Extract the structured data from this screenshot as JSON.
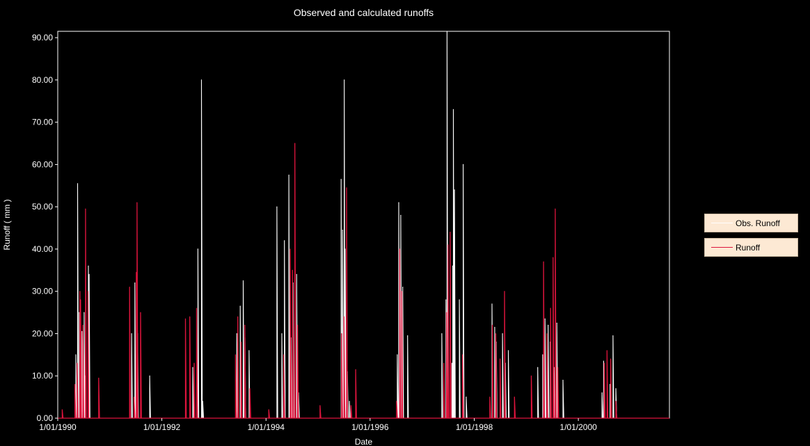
{
  "colors": {
    "background": "#000000",
    "axis": "#ffffff",
    "observed": "#ffffff",
    "calculated": "#dc143c",
    "legend_bg": "#fde9d4"
  },
  "chart_data": {
    "type": "line",
    "title": "Observed and calculated runoffs",
    "xlabel": "Date",
    "ylabel": "Runoff ( mm )",
    "ylim": [
      0,
      91.5
    ],
    "xlim": [
      "1/01/1990",
      "1/10/2001"
    ],
    "y_ticks": [
      "0.00",
      "10.00",
      "20.00",
      "30.00",
      "40.00",
      "50.00",
      "60.00",
      "70.00",
      "80.00",
      "90.00"
    ],
    "x_ticks": [
      "1/01/1990",
      "1/01/1992",
      "1/01/1994",
      "1/01/1996",
      "1/01/1998",
      "1/01/2000"
    ],
    "grid": false,
    "legend_position": "right",
    "series": [
      {
        "name": "Obs. Runoff",
        "color": "#ffffff",
        "x": [
          "1990-05-08",
          "1990-05-20",
          "1990-06-01",
          "1990-06-08",
          "1990-06-20",
          "1990-07-05",
          "1990-07-12",
          "1990-08-04",
          "1990-08-09",
          "1991-06-03",
          "1991-06-26",
          "1991-07-15",
          "1991-10-08",
          "1992-08-05",
          "1992-09-10",
          "1992-10-05",
          "1992-10-14",
          "1993-06-10",
          "1993-07-04",
          "1993-07-25",
          "1993-08-06",
          "1993-09-04",
          "1994-03-18",
          "1994-04-22",
          "1994-05-10",
          "1994-06-10",
          "1994-06-26",
          "1994-07-10",
          "1994-08-04",
          "1994-08-17",
          "1995-06-12",
          "1995-06-22",
          "1995-07-04",
          "1995-07-10",
          "1995-07-26",
          "1995-08-09",
          "1996-07-10",
          "1996-07-20",
          "1996-08-03",
          "1996-08-17",
          "1996-09-20",
          "1997-05-18",
          "1997-06-16",
          "1997-06-24",
          "1997-07-28",
          "1997-08-03",
          "1997-08-07",
          "1997-08-15",
          "1997-09-18",
          "1997-10-15",
          "1997-11-05",
          "1998-05-05",
          "1998-05-24",
          "1998-06-04",
          "1998-07-18",
          "1998-08-07",
          "1998-08-28",
          "1999-03-22",
          "1999-04-26",
          "1999-05-12",
          "1999-06-03",
          "1999-06-18",
          "1999-07-15",
          "1999-08-03",
          "1999-09-15",
          "2000-06-15",
          "2000-06-26",
          "2000-08-10",
          "2000-08-31",
          "2000-09-20"
        ],
        "y": [
          15,
          55.5,
          25,
          18,
          20.5,
          25,
          10,
          36,
          34,
          20,
          32,
          20,
          10,
          12,
          40,
          80,
          4,
          20,
          26.5,
          32.5,
          19,
          16,
          50,
          20,
          42,
          57.5,
          19,
          32,
          34,
          6,
          56.5,
          44.5,
          80,
          40,
          11,
          4,
          15,
          51,
          48,
          31,
          19.5,
          20,
          28,
          91.5,
          13,
          36,
          73,
          54,
          28,
          60,
          5,
          27,
          21.5,
          18,
          20,
          13,
          16,
          12,
          15,
          23.5,
          22,
          18,
          12,
          22.5,
          9,
          6,
          13.5,
          8,
          19.5,
          7
        ]
      },
      {
        "name": "Runoff",
        "color": "#dc143c",
        "x": [
          "1990-02-01",
          "1990-05-01",
          "1990-05-17",
          "1990-06-05",
          "1990-06-10",
          "1990-06-26",
          "1990-07-15",
          "1990-08-01",
          "1990-10-15",
          "1991-05-20",
          "1991-06-20",
          "1991-07-06",
          "1991-07-11",
          "1991-08-05",
          "1992-06-15",
          "1992-07-15",
          "1992-08-15",
          "1992-09-01",
          "1993-06-01",
          "1993-06-17",
          "1993-07-10",
          "1993-08-05",
          "1993-09-10",
          "1994-01-20",
          "1994-05-05",
          "1994-06-20",
          "1994-07-06",
          "1994-07-22",
          "1994-08-10",
          "1995-01-15",
          "1995-06-15",
          "1995-07-02",
          "1995-07-20",
          "1995-08-20",
          "1995-09-22",
          "1996-07-05",
          "1996-07-27",
          "1996-08-10",
          "1997-06-01",
          "1997-06-20",
          "1997-07-01",
          "1997-07-16",
          "1997-10-10",
          "1998-04-20",
          "1998-05-08",
          "1998-06-01",
          "1998-07-01",
          "1998-08-01",
          "1998-10-10",
          "1999-02-05",
          "1999-05-02",
          "1999-05-25",
          "1999-06-20",
          "1999-07-08",
          "1999-07-23",
          "1999-08-10",
          "2000-07-01",
          "2000-07-20",
          "2000-08-15",
          "2000-09-20"
        ],
        "y": [
          2,
          8,
          13,
          30,
          28,
          22,
          49.5,
          30,
          9.5,
          31,
          5,
          34.5,
          51,
          25,
          23.5,
          24,
          13,
          26,
          15,
          24,
          18,
          22,
          7,
          2,
          15,
          40,
          35,
          65,
          22,
          3,
          20,
          24,
          54.5,
          3,
          11.5,
          4,
          40,
          30,
          13,
          25,
          41,
          44,
          15,
          5,
          22,
          20,
          14,
          30,
          5,
          10,
          37,
          20,
          26,
          38,
          49.5,
          12,
          13,
          16,
          14,
          4
        ]
      }
    ]
  }
}
